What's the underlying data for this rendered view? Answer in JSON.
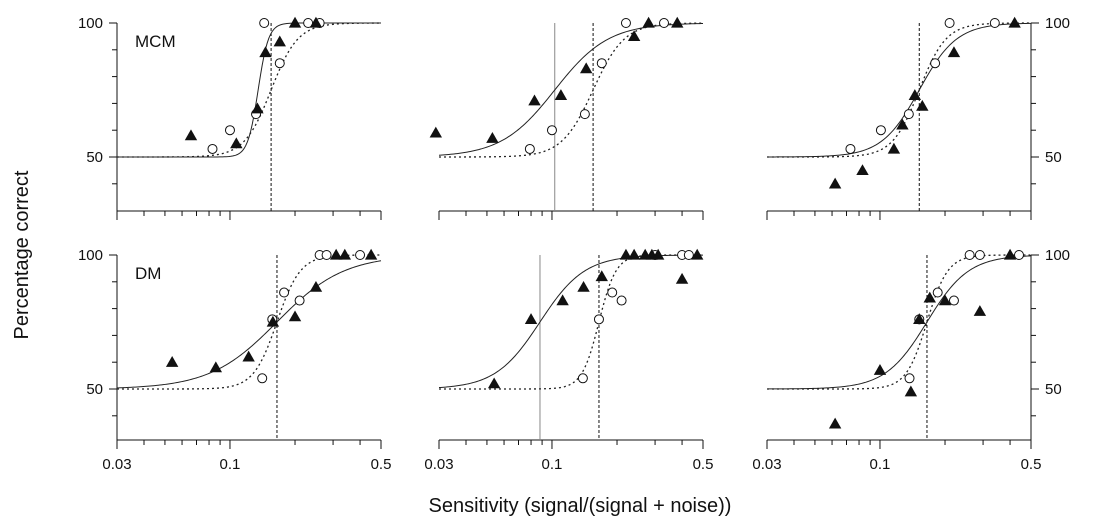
{
  "figure": {
    "ylabel": "Percentage correct",
    "xlabel": "Sensitivity (signal/(signal + noise))"
  },
  "chart_data": {
    "type": "scatter",
    "x_axis": {
      "scale": "log",
      "range": [
        0.03,
        0.5
      ],
      "tick_labels": [
        "0.03",
        "0.1",
        "0.5"
      ]
    },
    "y_axis": {
      "range": [
        30,
        100
      ],
      "tick_labels": [
        "50",
        "100"
      ]
    },
    "grid": false,
    "legend": "none",
    "series_styles": {
      "filled": {
        "marker": "filled-triangle",
        "fit_line": "solid"
      },
      "open": {
        "marker": "open-circle",
        "fit_line": "dotted"
      }
    },
    "panels": [
      {
        "row": 0,
        "col": 0,
        "label": "MCM",
        "filled": {
          "x": [
            0.066,
            0.107,
            0.134,
            0.146,
            0.17
          ],
          "y": [
            58,
            55,
            68,
            89,
            93
          ]
        },
        "open": {
          "x": [
            0.083,
            0.1,
            0.132,
            0.17,
            0.26
          ],
          "y": [
            53,
            60,
            66,
            85,
            100
          ]
        },
        "filled_extra": {
          "x": [
            0.2,
            0.25
          ],
          "y": [
            100,
            100
          ]
        },
        "open_extra": {
          "x": [
            0.144,
            0.23
          ],
          "y": [
            100,
            100
          ]
        },
        "fit_filled": {
          "threshold": 0.135,
          "slope": 18
        },
        "fit_open": {
          "threshold": 0.155,
          "slope": 7
        },
        "threshold_lines": [
          {
            "x": 0.155,
            "style": "dotted"
          }
        ]
      },
      {
        "row": 0,
        "col": 1,
        "label": "",
        "filled": {
          "x": [
            0.029,
            0.053,
            0.083,
            0.11,
            0.144,
            0.24,
            0.28,
            0.38
          ],
          "y": [
            59,
            57,
            71,
            73,
            83,
            95,
            100,
            100
          ]
        },
        "open": {
          "x": [
            0.079,
            0.1,
            0.142,
            0.17,
            0.22,
            0.33
          ],
          "y": [
            53,
            60,
            66,
            85,
            100,
            100
          ]
        },
        "fit_filled": {
          "threshold": 0.103,
          "slope": 3.5
        },
        "fit_open": {
          "threshold": 0.155,
          "slope": 6
        },
        "threshold_lines": [
          {
            "x": 0.103,
            "style": "solid"
          },
          {
            "x": 0.155,
            "style": "dotted"
          }
        ]
      },
      {
        "row": 0,
        "col": 2,
        "label": "",
        "filled": {
          "x": [
            0.062,
            0.083,
            0.116,
            0.127,
            0.145,
            0.157,
            0.22,
            0.42
          ],
          "y": [
            40,
            45,
            53,
            62,
            73,
            69,
            89,
            100
          ]
        },
        "open": {
          "x": [
            0.073,
            0.101,
            0.136,
            0.18,
            0.21,
            0.34
          ],
          "y": [
            53,
            60,
            66,
            85,
            100,
            100
          ]
        },
        "fit_filled": {
          "threshold": 0.152,
          "slope": 5
        },
        "fit_open": {
          "threshold": 0.152,
          "slope": 7
        },
        "threshold_lines": [
          {
            "x": 0.152,
            "style": "dotted"
          }
        ]
      },
      {
        "row": 1,
        "col": 0,
        "label": "DM",
        "filled": {
          "x": [
            0.054,
            0.086,
            0.122,
            0.158,
            0.2,
            0.25,
            0.31,
            0.34,
            0.45
          ],
          "y": [
            60,
            58,
            62,
            75,
            77,
            88,
            100,
            100,
            100
          ]
        },
        "open": {
          "x": [
            0.141,
            0.157,
            0.178,
            0.21,
            0.26,
            0.28,
            0.4
          ],
          "y": [
            54,
            76,
            86,
            83,
            100,
            100,
            100
          ]
        },
        "fit_filled": {
          "threshold": 0.165,
          "slope": 2.8
        },
        "fit_open": {
          "threshold": 0.165,
          "slope": 8
        },
        "threshold_lines": [
          {
            "x": 0.165,
            "style": "dotted"
          }
        ]
      },
      {
        "row": 1,
        "col": 1,
        "label": "",
        "filled": {
          "x": [
            0.054,
            0.08,
            0.112,
            0.14,
            0.17,
            0.22,
            0.24,
            0.27,
            0.29,
            0.31,
            0.4,
            0.47
          ],
          "y": [
            52,
            76,
            83,
            88,
            92,
            100,
            100,
            100,
            100,
            100,
            91,
            100
          ]
        },
        "open": {
          "x": [
            0.139,
            0.165,
            0.19,
            0.21,
            0.3,
            0.4,
            0.43
          ],
          "y": [
            54,
            76,
            86,
            83,
            100,
            100,
            100
          ]
        },
        "fit_filled": {
          "threshold": 0.088,
          "slope": 4.2
        },
        "fit_open": {
          "threshold": 0.165,
          "slope": 11
        },
        "threshold_lines": [
          {
            "x": 0.088,
            "style": "solid"
          },
          {
            "x": 0.165,
            "style": "dotted"
          }
        ]
      },
      {
        "row": 1,
        "col": 2,
        "label": "",
        "filled": {
          "x": [
            0.062,
            0.1,
            0.139,
            0.152,
            0.17,
            0.2,
            0.29,
            0.4
          ],
          "y": [
            37,
            57,
            49,
            76,
            84,
            83,
            79,
            100
          ]
        },
        "open": {
          "x": [
            0.137,
            0.152,
            0.185,
            0.22,
            0.26,
            0.29,
            0.44
          ],
          "y": [
            54,
            76,
            86,
            83,
            100,
            100,
            100
          ]
        },
        "fit_filled": {
          "threshold": 0.165,
          "slope": 4.5
        },
        "fit_open": {
          "threshold": 0.165,
          "slope": 9
        },
        "threshold_lines": [
          {
            "x": 0.165,
            "style": "dotted"
          }
        ]
      }
    ]
  }
}
